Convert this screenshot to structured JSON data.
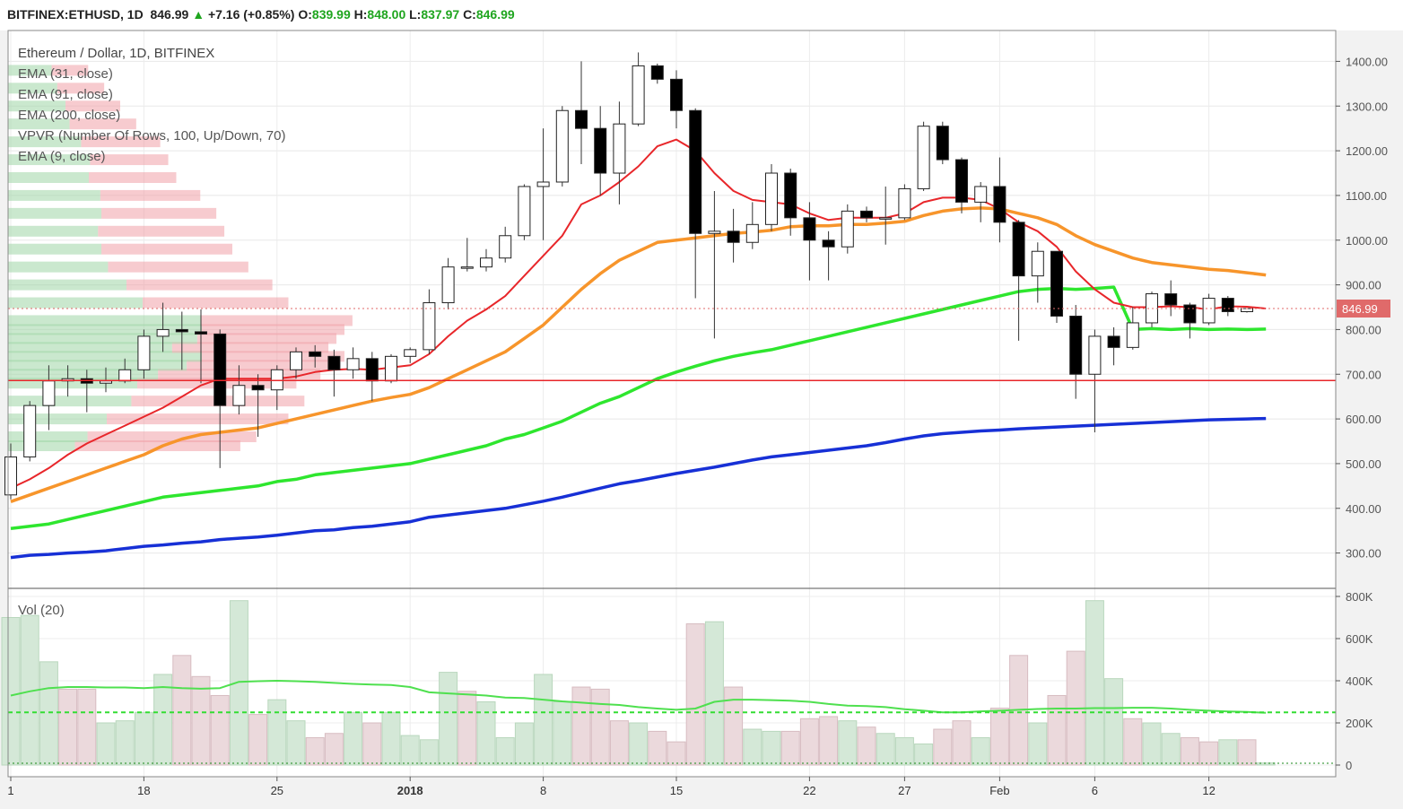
{
  "header": {
    "symbol": "BITFINEX:ETHUSD, 1D",
    "price": "846.99",
    "change": "+7.16 (+0.85%)",
    "o_label": "O:",
    "o": "839.99",
    "h_label": "H:",
    "h": "848.00",
    "l_label": "L:",
    "l": "837.97",
    "c_label": "C:",
    "c": "846.99"
  },
  "legend": {
    "title": "Ethereum / Dollar, 1D, BITFINEX",
    "items": [
      "EMA (31, close)",
      "EMA (91, close)",
      "EMA (200, close)",
      "VPVR (Number Of Rows, 100, Up/Down, 70)",
      "EMA (9, close)"
    ],
    "volume": "Vol (20)"
  },
  "colors": {
    "up_body": "#ffffff",
    "down_body": "#000000",
    "ema9": "#e8262a",
    "ema31": "#f7952b",
    "ema91": "#2ee62e",
    "ema200": "#1730d6",
    "support_line": "#e8262a",
    "vol_up": "#d4e8d7",
    "vol_down": "#ebd9dc",
    "vol_ma": "#4fe04f",
    "price_tag": "#e06a6a"
  },
  "price_axis": {
    "ticks": [
      "1400.00",
      "1300.00",
      "1200.00",
      "1100.00",
      "1000.00",
      "900.00",
      "800.00",
      "700.00",
      "600.00",
      "500.00",
      "400.00",
      "300.00"
    ],
    "current_price_tag": "846.99"
  },
  "volume_axis": {
    "ticks": [
      "800K",
      "600K",
      "400K",
      "200K",
      "0"
    ]
  },
  "time_axis": {
    "ticks": [
      "1",
      "18",
      "25",
      "2018",
      "8",
      "15",
      "22",
      "27",
      "Feb",
      "6",
      "12"
    ]
  },
  "chart_data": {
    "type": "candlestick",
    "symbol": "BITFINEX:ETHUSD",
    "interval": "1D",
    "ylim": [
      245,
      1445
    ],
    "support_level": 686,
    "current_price": 846.99,
    "candles": [
      {
        "o": 430,
        "h": 545,
        "l": 420,
        "c": 515
      },
      {
        "o": 515,
        "h": 640,
        "l": 505,
        "c": 630
      },
      {
        "o": 630,
        "h": 720,
        "l": 575,
        "c": 685
      },
      {
        "o": 685,
        "h": 720,
        "l": 650,
        "c": 690
      },
      {
        "o": 690,
        "h": 710,
        "l": 615,
        "c": 680
      },
      {
        "o": 680,
        "h": 715,
        "l": 660,
        "c": 685
      },
      {
        "o": 685,
        "h": 735,
        "l": 680,
        "c": 710
      },
      {
        "o": 710,
        "h": 800,
        "l": 690,
        "c": 785
      },
      {
        "o": 785,
        "h": 860,
        "l": 750,
        "c": 800
      },
      {
        "o": 800,
        "h": 840,
        "l": 710,
        "c": 795
      },
      {
        "o": 795,
        "h": 845,
        "l": 680,
        "c": 790
      },
      {
        "o": 790,
        "h": 800,
        "l": 490,
        "c": 630
      },
      {
        "o": 630,
        "h": 720,
        "l": 610,
        "c": 675
      },
      {
        "o": 675,
        "h": 700,
        "l": 560,
        "c": 665
      },
      {
        "o": 665,
        "h": 720,
        "l": 620,
        "c": 710
      },
      {
        "o": 710,
        "h": 760,
        "l": 690,
        "c": 750
      },
      {
        "o": 750,
        "h": 765,
        "l": 715,
        "c": 740
      },
      {
        "o": 740,
        "h": 755,
        "l": 650,
        "c": 710
      },
      {
        "o": 710,
        "h": 760,
        "l": 690,
        "c": 735
      },
      {
        "o": 735,
        "h": 750,
        "l": 640,
        "c": 685
      },
      {
        "o": 685,
        "h": 745,
        "l": 680,
        "c": 740
      },
      {
        "o": 740,
        "h": 760,
        "l": 725,
        "c": 755
      },
      {
        "o": 755,
        "h": 890,
        "l": 745,
        "c": 860
      },
      {
        "o": 860,
        "h": 960,
        "l": 845,
        "c": 940
      },
      {
        "o": 940,
        "h": 1005,
        "l": 930,
        "c": 940
      },
      {
        "o": 940,
        "h": 980,
        "l": 930,
        "c": 960
      },
      {
        "o": 960,
        "h": 1030,
        "l": 950,
        "c": 1010
      },
      {
        "o": 1010,
        "h": 1125,
        "l": 1000,
        "c": 1120
      },
      {
        "o": 1120,
        "h": 1250,
        "l": 1000,
        "c": 1130
      },
      {
        "o": 1130,
        "h": 1300,
        "l": 1120,
        "c": 1290
      },
      {
        "o": 1290,
        "h": 1400,
        "l": 1170,
        "c": 1250
      },
      {
        "o": 1250,
        "h": 1300,
        "l": 1100,
        "c": 1150
      },
      {
        "o": 1150,
        "h": 1310,
        "l": 1080,
        "c": 1260
      },
      {
        "o": 1260,
        "h": 1420,
        "l": 1255,
        "c": 1390
      },
      {
        "o": 1390,
        "h": 1395,
        "l": 1350,
        "c": 1360
      },
      {
        "o": 1360,
        "h": 1380,
        "l": 1250,
        "c": 1290
      },
      {
        "o": 1290,
        "h": 1295,
        "l": 870,
        "c": 1015
      },
      {
        "o": 1015,
        "h": 1110,
        "l": 780,
        "c": 1020
      },
      {
        "o": 1020,
        "h": 1070,
        "l": 950,
        "c": 995
      },
      {
        "o": 995,
        "h": 1085,
        "l": 980,
        "c": 1035
      },
      {
        "o": 1035,
        "h": 1170,
        "l": 1020,
        "c": 1150
      },
      {
        "o": 1150,
        "h": 1160,
        "l": 1010,
        "c": 1050
      },
      {
        "o": 1050,
        "h": 1085,
        "l": 910,
        "c": 1000
      },
      {
        "o": 1000,
        "h": 1020,
        "l": 910,
        "c": 985
      },
      {
        "o": 985,
        "h": 1080,
        "l": 970,
        "c": 1065
      },
      {
        "o": 1065,
        "h": 1075,
        "l": 1040,
        "c": 1050
      },
      {
        "o": 1050,
        "h": 1120,
        "l": 990,
        "c": 1050
      },
      {
        "o": 1050,
        "h": 1125,
        "l": 1045,
        "c": 1115
      },
      {
        "o": 1115,
        "h": 1265,
        "l": 1110,
        "c": 1255
      },
      {
        "o": 1255,
        "h": 1265,
        "l": 1170,
        "c": 1180
      },
      {
        "o": 1180,
        "h": 1185,
        "l": 1060,
        "c": 1085
      },
      {
        "o": 1085,
        "h": 1130,
        "l": 1040,
        "c": 1120
      },
      {
        "o": 1120,
        "h": 1185,
        "l": 995,
        "c": 1040
      },
      {
        "o": 1040,
        "h": 1045,
        "l": 775,
        "c": 920
      },
      {
        "o": 920,
        "h": 995,
        "l": 860,
        "c": 975
      },
      {
        "o": 975,
        "h": 975,
        "l": 815,
        "c": 830
      },
      {
        "o": 830,
        "h": 855,
        "l": 645,
        "c": 700
      },
      {
        "o": 700,
        "h": 800,
        "l": 570,
        "c": 785
      },
      {
        "o": 785,
        "h": 805,
        "l": 720,
        "c": 760
      },
      {
        "o": 760,
        "h": 850,
        "l": 755,
        "c": 815
      },
      {
        "o": 815,
        "h": 885,
        "l": 805,
        "c": 880
      },
      {
        "o": 880,
        "h": 910,
        "l": 830,
        "c": 855
      },
      {
        "o": 855,
        "h": 860,
        "l": 780,
        "c": 815
      },
      {
        "o": 815,
        "h": 880,
        "l": 810,
        "c": 870
      },
      {
        "o": 870,
        "h": 875,
        "l": 830,
        "c": 840
      },
      {
        "o": 839.99,
        "h": 848,
        "l": 837.97,
        "c": 846.99
      }
    ],
    "ema9": [
      445,
      465,
      490,
      520,
      545,
      565,
      585,
      605,
      625,
      650,
      675,
      690,
      690,
      690,
      690,
      695,
      705,
      710,
      712,
      710,
      715,
      720,
      745,
      785,
      820,
      845,
      875,
      920,
      965,
      1010,
      1080,
      1100,
      1130,
      1165,
      1210,
      1225,
      1200,
      1150,
      1110,
      1090,
      1085,
      1080,
      1060,
      1045,
      1050,
      1050,
      1050,
      1060,
      1085,
      1095,
      1095,
      1090,
      1070,
      1040,
      1020,
      985,
      930,
      890,
      860,
      850,
      850,
      852,
      850,
      845,
      852,
      851,
      847
    ],
    "ema31": [
      415,
      430,
      445,
      460,
      475,
      490,
      505,
      520,
      540,
      555,
      565,
      570,
      575,
      580,
      590,
      600,
      610,
      620,
      630,
      640,
      648,
      655,
      670,
      690,
      710,
      730,
      750,
      780,
      810,
      850,
      890,
      925,
      955,
      975,
      995,
      1000,
      1005,
      1010,
      1015,
      1018,
      1022,
      1030,
      1032,
      1032,
      1035,
      1035,
      1038,
      1042,
      1055,
      1065,
      1070,
      1072,
      1070,
      1060,
      1050,
      1035,
      1010,
      990,
      975,
      960,
      950,
      945,
      940,
      935,
      932,
      927,
      922
    ],
    "ema91": [
      355,
      360,
      365,
      375,
      385,
      395,
      405,
      415,
      425,
      430,
      435,
      440,
      445,
      450,
      460,
      465,
      475,
      480,
      485,
      490,
      495,
      500,
      510,
      520,
      530,
      540,
      555,
      565,
      580,
      595,
      615,
      635,
      650,
      670,
      690,
      705,
      718,
      730,
      740,
      748,
      755,
      765,
      775,
      785,
      795,
      805,
      815,
      825,
      835,
      845,
      855,
      865,
      875,
      885,
      890,
      892,
      890,
      892,
      895,
      800,
      802,
      800,
      802,
      800,
      801,
      800,
      801
    ],
    "ema200": [
      290,
      295,
      297,
      300,
      302,
      305,
      310,
      315,
      318,
      322,
      325,
      330,
      333,
      336,
      340,
      345,
      350,
      352,
      357,
      360,
      365,
      370,
      380,
      385,
      390,
      395,
      400,
      408,
      416,
      425,
      435,
      445,
      455,
      462,
      470,
      478,
      485,
      492,
      500,
      508,
      515,
      520,
      525,
      530,
      535,
      540,
      547,
      555,
      562,
      567,
      570,
      573,
      575,
      578,
      580,
      582,
      584,
      586,
      588,
      590,
      592,
      594,
      596,
      598,
      599,
      600,
      601
    ],
    "volume": {
      "up": [
        true,
        true,
        true,
        false,
        false,
        true,
        true,
        true,
        true,
        false,
        false,
        false,
        true,
        false,
        true,
        true,
        false,
        false,
        true,
        false,
        true,
        true,
        true,
        true,
        false,
        true,
        true,
        true,
        true,
        true,
        false,
        false,
        false,
        true,
        false,
        false,
        false,
        true,
        false,
        true,
        true,
        false,
        false,
        false,
        true,
        false,
        true,
        true,
        true,
        false,
        false,
        true,
        false,
        false,
        true,
        false,
        false,
        true,
        true,
        false,
        true,
        true,
        false,
        false,
        true,
        false,
        true
      ],
      "values": [
        700,
        710,
        490,
        360,
        360,
        200,
        210,
        250,
        430,
        520,
        420,
        330,
        780,
        240,
        310,
        210,
        130,
        150,
        250,
        200,
        250,
        140,
        120,
        440,
        350,
        300,
        130,
        200,
        430,
        300,
        370,
        360,
        210,
        200,
        160,
        110,
        670,
        680,
        370,
        170,
        160,
        160,
        220,
        230,
        210,
        180,
        150,
        130,
        100,
        170,
        210,
        130,
        270,
        520,
        200,
        330,
        540,
        780,
        410,
        220,
        200,
        150,
        130,
        110,
        120,
        120,
        10
      ],
      "ma": [
        330,
        350,
        365,
        370,
        370,
        368,
        368,
        365,
        370,
        365,
        362,
        365,
        395,
        398,
        400,
        398,
        395,
        390,
        385,
        382,
        380,
        370,
        345,
        340,
        335,
        330,
        320,
        318,
        310,
        302,
        296,
        290,
        285,
        275,
        268,
        262,
        268,
        300,
        310,
        310,
        308,
        305,
        300,
        290,
        282,
        280,
        275,
        265,
        258,
        250,
        250,
        255,
        258,
        262,
        266,
        268,
        268,
        270,
        270,
        272,
        272,
        268,
        262,
        258,
        254,
        252,
        248
      ]
    },
    "volume_ma_dashed": 250,
    "vpvr": [
      [
        0.58,
        540,
        0.18,
        0.45
      ],
      [
        0.62,
        560,
        0.2,
        0.44
      ],
      [
        0.7,
        600,
        0.22,
        0.42
      ],
      [
        0.74,
        640,
        0.26,
        0.4
      ],
      [
        0.72,
        680,
        0.28,
        0.42
      ],
      [
        0.78,
        700,
        0.3,
        0.5
      ],
      [
        0.82,
        720,
        0.34,
        0.55
      ],
      [
        0.84,
        740,
        0.36,
        0.56
      ],
      [
        0.8,
        760,
        0.32,
        0.55
      ],
      [
        0.82,
        780,
        0.36,
        0.58
      ],
      [
        0.84,
        800,
        0.36,
        0.6
      ],
      [
        0.86,
        820,
        0.35,
        0.6
      ],
      [
        0.7,
        860,
        0.3,
        0.55
      ],
      [
        0.66,
        900,
        0.28,
        0.52
      ],
      [
        0.6,
        940,
        0.26,
        0.52
      ],
      [
        0.56,
        980,
        0.26,
        0.5
      ],
      [
        0.54,
        1020,
        0.26,
        0.54
      ],
      [
        0.52,
        1060,
        0.28,
        0.56
      ],
      [
        0.48,
        1100,
        0.3,
        0.54
      ],
      [
        0.42,
        1140,
        0.3,
        0.56
      ],
      [
        0.4,
        1180,
        0.32,
        0.6
      ],
      [
        0.38,
        1220,
        0.3,
        0.56
      ],
      [
        0.32,
        1260,
        0.3,
        0.56
      ],
      [
        0.28,
        1300,
        0.32,
        0.58
      ],
      [
        0.24,
        1340,
        0.32,
        0.58
      ],
      [
        0.2,
        1380,
        0.34,
        0.6
      ]
    ]
  }
}
